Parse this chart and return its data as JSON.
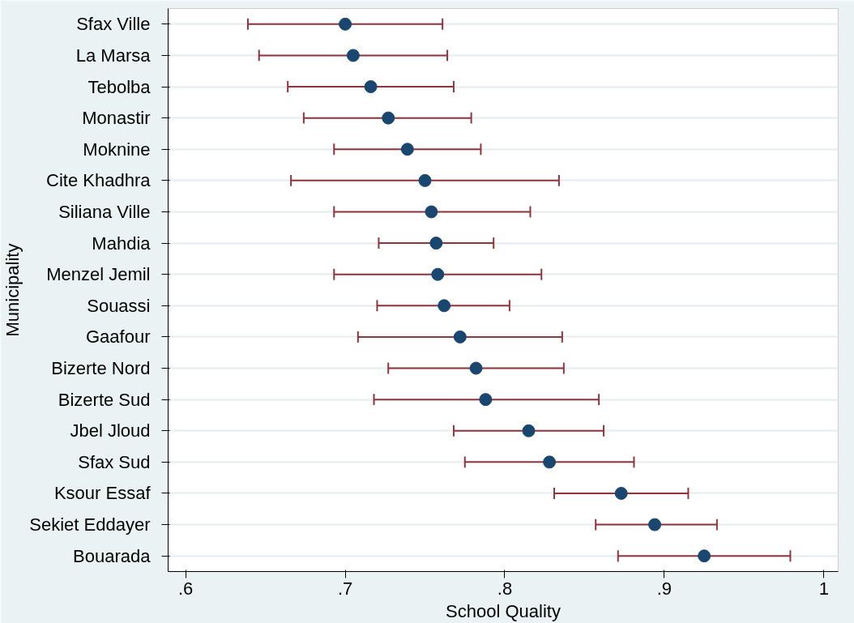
{
  "chart_data": {
    "type": "scatter",
    "orientation": "horizontal",
    "xlabel": "School Quality",
    "ylabel": "Municipality",
    "categories": [
      "Sfax Ville",
      "La Marsa",
      "Tebolba",
      "Monastir",
      "Moknine",
      "Cite Khadhra",
      "Siliana Ville",
      "Mahdia",
      "Menzel Jemil",
      "Souassi",
      "Gaafour",
      "Bizerte Nord",
      "Bizerte Sud",
      "Jbel Jloud",
      "Sfax Sud",
      "Ksour Essaf",
      "Sekiet Eddayer",
      "Bouarada"
    ],
    "series": [
      {
        "color": "#1a476f",
        "values": [
          0.7,
          0.705,
          0.716,
          0.727,
          0.739,
          0.75,
          0.754,
          0.757,
          0.758,
          0.762,
          0.772,
          0.782,
          0.788,
          0.815,
          0.828,
          0.873,
          0.894,
          0.925
        ],
        "errors": [
          [
            0.639,
            0.761
          ],
          [
            0.646,
            0.764
          ],
          [
            0.664,
            0.768
          ],
          [
            0.674,
            0.779
          ],
          [
            0.693,
            0.785
          ],
          [
            0.666,
            0.834
          ],
          [
            0.693,
            0.816
          ],
          [
            0.721,
            0.793
          ],
          [
            0.693,
            0.823
          ],
          [
            0.72,
            0.803
          ],
          [
            0.708,
            0.836
          ],
          [
            0.727,
            0.837
          ],
          [
            0.718,
            0.859
          ],
          [
            0.768,
            0.862
          ],
          [
            0.775,
            0.881
          ],
          [
            0.831,
            0.915
          ],
          [
            0.857,
            0.933
          ],
          [
            0.871,
            0.979
          ]
        ]
      }
    ],
    "xlim": [
      0.589,
      1.009
    ],
    "xticks": [
      {
        "value": 0.6,
        "label": ".6"
      },
      {
        "value": 0.7,
        "label": ".7"
      },
      {
        "value": 0.8,
        "label": ".8"
      },
      {
        "value": 0.9,
        "label": ".9"
      },
      {
        "value": 1,
        "label": "1"
      }
    ],
    "grid": "y",
    "marker": "circle"
  }
}
